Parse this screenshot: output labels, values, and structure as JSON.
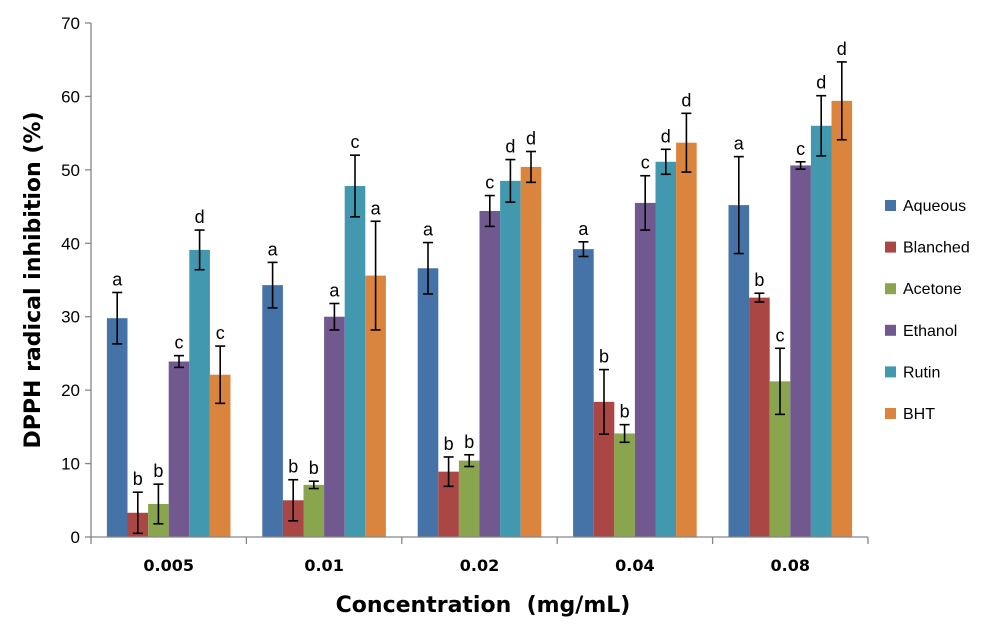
{
  "chart_data": {
    "type": "bar",
    "title": "",
    "xlabel": "Concentration  (mg/mL)",
    "ylabel": "DPPH radical inhibition (%)",
    "ylim": [
      0,
      70
    ],
    "yticks": [
      0,
      10,
      20,
      30,
      40,
      50,
      60,
      70
    ],
    "grid": false,
    "legend_position": "right",
    "categories": [
      "0.005",
      "0.01",
      "0.02",
      "0.04",
      "0.08"
    ],
    "series": [
      {
        "name": "Aqueous",
        "color": "#4572A7",
        "values": [
          29.8,
          34.3,
          36.6,
          39.2,
          45.2
        ],
        "errors": [
          3.5,
          3.1,
          3.5,
          1.0,
          6.6
        ],
        "letters": [
          "a",
          "a",
          "a",
          "a",
          "a"
        ]
      },
      {
        "name": "Blanched",
        "color": "#AA4643",
        "values": [
          3.3,
          5.0,
          8.9,
          18.4,
          32.6
        ],
        "errors": [
          2.8,
          2.8,
          2.0,
          4.4,
          0.6
        ],
        "letters": [
          "b",
          "b",
          "b",
          "b",
          "b"
        ]
      },
      {
        "name": "Acetone",
        "color": "#89A54E",
        "values": [
          4.5,
          7.1,
          10.4,
          14.1,
          21.2
        ],
        "errors": [
          2.7,
          0.5,
          0.8,
          1.2,
          4.5
        ],
        "letters": [
          "b",
          "b",
          "b",
          "b",
          "c"
        ]
      },
      {
        "name": "Ethanol",
        "color": "#71588F",
        "values": [
          23.9,
          30.0,
          44.4,
          45.5,
          50.6
        ],
        "errors": [
          0.8,
          1.8,
          2.1,
          3.7,
          0.5
        ],
        "letters": [
          "c",
          "a",
          "c",
          "c",
          "c"
        ]
      },
      {
        "name": "Rutin",
        "color": "#4198AF",
        "values": [
          39.1,
          47.8,
          48.5,
          51.1,
          56.0
        ],
        "errors": [
          2.7,
          4.2,
          2.9,
          1.7,
          4.1
        ],
        "letters": [
          "d",
          "c",
          "d",
          "d",
          "d"
        ]
      },
      {
        "name": "BHT",
        "color": "#DB843D",
        "values": [
          22.1,
          35.6,
          50.4,
          53.7,
          59.4
        ],
        "errors": [
          3.9,
          7.4,
          2.1,
          4.0,
          5.3
        ],
        "letters": [
          "c",
          "a",
          "d",
          "d",
          "d"
        ]
      }
    ]
  }
}
